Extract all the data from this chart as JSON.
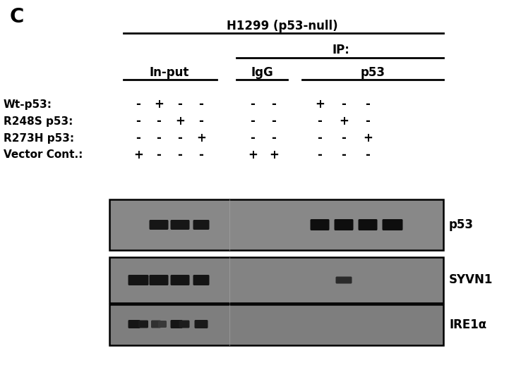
{
  "panel_label": "C",
  "title": "H1299 (p53-null)",
  "ip_label": "IP:",
  "input_label": "In-put",
  "igg_label": "IgG",
  "p53_ip_label": "p53",
  "row_labels": [
    "Wt-p53:",
    "R248S p53:",
    "R273H p53:",
    "Vector Cont.:"
  ],
  "blot_labels": [
    "p53",
    "SYVN1",
    "IRE1α"
  ],
  "row_data": [
    [
      "-",
      "+",
      "-",
      "-",
      "-",
      "-",
      "+",
      "-",
      "-"
    ],
    [
      "-",
      "-",
      "+",
      "-",
      "-",
      "-",
      "-",
      "+",
      "-"
    ],
    [
      "-",
      "-",
      "-",
      "+",
      "-",
      "-",
      "-",
      "-",
      "+"
    ],
    [
      "+",
      "-",
      "-",
      "-",
      "+",
      "+",
      "-",
      "-",
      "-"
    ]
  ],
  "bg_color": "#ffffff",
  "blot_bg_color": "#888888",
  "blot_bg_dark": "#7a7a7a",
  "band_color": "#111111",
  "border_color": "#000000",
  "figure_bg": "#ffffff",
  "line_color": "#000000"
}
